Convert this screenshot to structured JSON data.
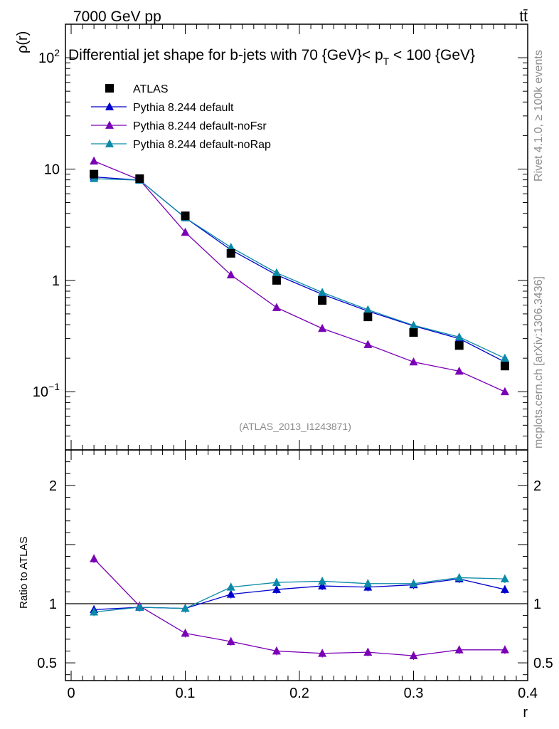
{
  "header": {
    "energy_label": "7000 GeV pp",
    "process_label": "tt̄"
  },
  "side_text": {
    "rivet": "Rivet 4.1.0, ≥ 100k events",
    "mcplots": "mcplots.cern.ch [arXiv:1306.3436]"
  },
  "chart_data": {
    "type": "scatter",
    "title": "Differential jet shape for b-jets with 70 {GeV}< p_T < 100 {GeV}",
    "title_parts": {
      "main": "Differential jet shape for b-jets with 70 {GeV}< p",
      "sub": "T",
      "tail": " < 100 {GeV}"
    },
    "analysis_label": "(ATLAS_2013_I1243871)",
    "xlabel": "r",
    "ylabel": "ρ(r)",
    "ratio_ylabel": "Ratio to ATLAS",
    "xlim": [
      -0.005,
      0.4
    ],
    "ylim": [
      0.03,
      200
    ],
    "ylog": true,
    "ratio_ylim": [
      0.35,
      2.3
    ],
    "x_ticks": [
      "0",
      "0.1",
      "0.2",
      "0.3",
      "0.4"
    ],
    "x_tick_values": [
      0,
      0.1,
      0.2,
      0.3,
      0.4
    ],
    "y_ticks": [
      {
        "base": "10",
        "exp": "−1",
        "value": 0.1
      },
      {
        "base": "1",
        "exp": "",
        "value": 1
      },
      {
        "base": "10",
        "exp": "",
        "value": 10
      },
      {
        "base": "10",
        "exp": "2",
        "value": 100
      }
    ],
    "ratio_ticks": [
      {
        "label": "0.5",
        "value": 0.5
      },
      {
        "label": "1",
        "value": 1
      },
      {
        "label": "2",
        "value": 2
      }
    ],
    "x": [
      0.02,
      0.06,
      0.1,
      0.14,
      0.18,
      0.22,
      0.26,
      0.3,
      0.34,
      0.38
    ],
    "data": {
      "name": "ATLAS",
      "color": "#000000",
      "values": [
        9.0,
        8.2,
        3.8,
        1.75,
        1.0,
        0.66,
        0.47,
        0.34,
        0.26,
        0.17
      ]
    },
    "series": [
      {
        "name": "Pythia 8.244 default",
        "color": "#0000cc",
        "values": [
          8.5,
          7.95,
          3.65,
          1.88,
          1.12,
          0.75,
          0.53,
          0.39,
          0.3,
          0.185
        ],
        "ratio": [
          0.95,
          0.97,
          0.96,
          1.08,
          1.12,
          1.15,
          1.14,
          1.16,
          1.21,
          1.12
        ]
      },
      {
        "name": "Pythia 8.244 default-noFsr",
        "color": "#7a00b5",
        "values": [
          11.8,
          8.0,
          2.7,
          1.12,
          0.57,
          0.37,
          0.265,
          0.185,
          0.153,
          0.1
        ],
        "ratio": [
          1.38,
          0.98,
          0.75,
          0.68,
          0.6,
          0.58,
          0.59,
          0.56,
          0.61,
          0.61
        ]
      },
      {
        "name": "Pythia 8.244 default-noRap",
        "color": "#0b8aa8",
        "values": [
          8.2,
          7.95,
          3.65,
          1.98,
          1.17,
          0.78,
          0.545,
          0.395,
          0.31,
          0.2
        ],
        "ratio": [
          0.93,
          0.97,
          0.96,
          1.14,
          1.18,
          1.19,
          1.17,
          1.17,
          1.22,
          1.21
        ]
      }
    ],
    "legend": [
      "ATLAS",
      "Pythia 8.244 default",
      "Pythia 8.244 default-noFsr",
      "Pythia 8.244 default-noRap"
    ],
    "legend_position": "top-left"
  }
}
